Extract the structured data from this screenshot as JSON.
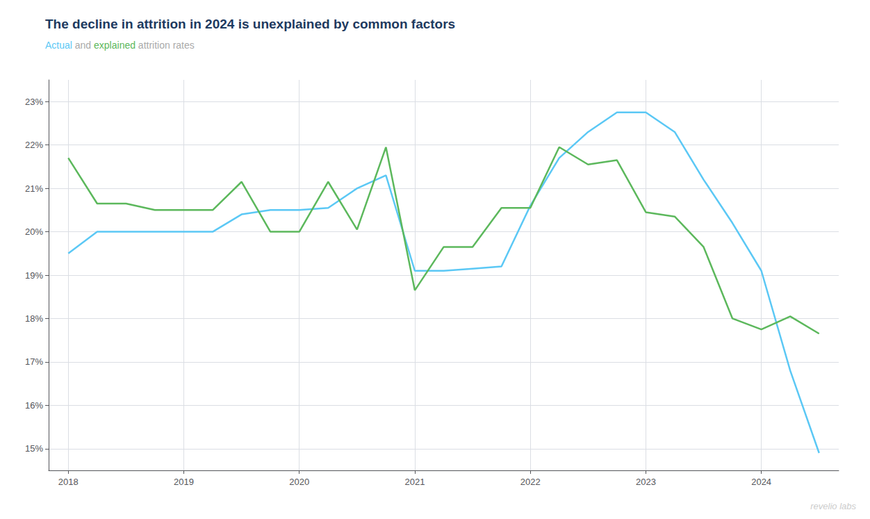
{
  "chart_data": {
    "type": "line",
    "title": "The decline in attrition in 2024 is unexplained by common factors",
    "subtitle": "Actual and explained attrition rates",
    "annotations": [
      "revelio labs"
    ],
    "x": [
      2018.0,
      2018.25,
      2018.5,
      2018.75,
      2019.0,
      2019.25,
      2019.5,
      2019.75,
      2020.0,
      2020.25,
      2020.5,
      2020.75,
      2021.0,
      2021.25,
      2021.5,
      2021.75,
      2022.0,
      2022.25,
      2022.5,
      2022.75,
      2023.0,
      2023.25,
      2023.5,
      2023.75,
      2024.0,
      2024.25,
      2024.5
    ],
    "series": [
      {
        "name": "Actual",
        "color": "#5bc8f5",
        "values": [
          19.5,
          20.0,
          20.0,
          20.0,
          20.0,
          20.0,
          20.4,
          20.5,
          20.5,
          20.55,
          21.0,
          21.3,
          19.1,
          19.1,
          19.15,
          19.2,
          20.6,
          21.7,
          22.3,
          22.75,
          22.75,
          22.3,
          21.2,
          20.2,
          19.1,
          16.8,
          14.9
        ]
      },
      {
        "name": "explained",
        "color": "#5cb85c",
        "values": [
          21.7,
          20.65,
          20.65,
          20.5,
          20.5,
          20.5,
          21.15,
          20.0,
          20.0,
          21.15,
          20.05,
          21.95,
          18.65,
          19.65,
          19.65,
          20.55,
          20.55,
          21.95,
          21.55,
          21.65,
          20.45,
          20.35,
          19.65,
          18.0,
          17.75,
          18.05,
          17.65
        ]
      }
    ],
    "xlim": [
      2017.83,
      2024.67
    ],
    "xticks": [
      2018,
      2019,
      2020,
      2021,
      2022,
      2023,
      2024
    ],
    "ylim": [
      14.5,
      23.5
    ],
    "yticks": [
      {
        "value": 15,
        "label": "15%"
      },
      {
        "value": 16,
        "label": "16%"
      },
      {
        "value": 17,
        "label": "17%"
      },
      {
        "value": 18,
        "label": "18%"
      },
      {
        "value": 19,
        "label": "19%"
      },
      {
        "value": 20,
        "label": "20%"
      },
      {
        "value": 21,
        "label": "21%"
      },
      {
        "value": 22,
        "label": "22%"
      },
      {
        "value": 23,
        "label": "23%"
      }
    ],
    "grid": true
  }
}
